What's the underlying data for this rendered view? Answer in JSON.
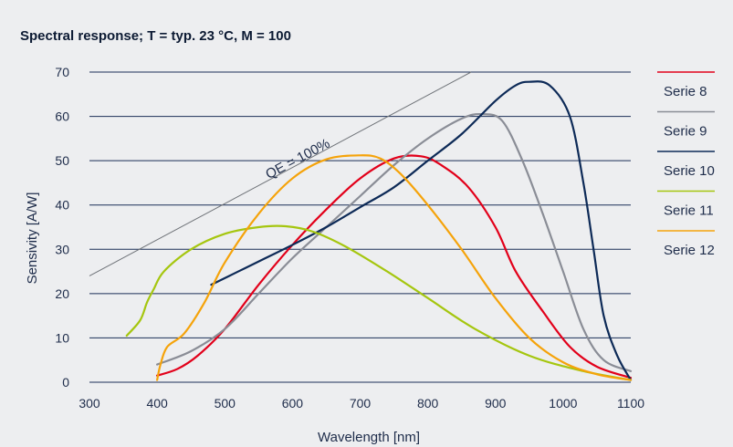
{
  "chart_data": {
    "type": "line",
    "title": "Spectral response; T = typ. 23 °C, M = 100",
    "xlabel": "Wavelength [nm]",
    "ylabel": "Sensivity  [A/W]",
    "xlim": [
      300,
      1100
    ],
    "ylim": [
      0,
      70
    ],
    "xticks": [
      "300",
      "400",
      "500",
      "600",
      "700",
      "800",
      "900",
      "1000",
      "1100"
    ],
    "yticks": [
      "0",
      "10",
      "20",
      "30",
      "40",
      "50",
      "60",
      "70"
    ],
    "grid": "horizontal",
    "legend_position": "right",
    "reference_line": {
      "label": "QE = 100%",
      "x": [
        300,
        864
      ],
      "y": [
        24,
        70
      ]
    },
    "series": [
      {
        "name": "Serie 8",
        "color": "#e2001a",
        "x": [
          400,
          430,
          460,
          500,
          550,
          600,
          650,
          700,
          750,
          790,
          820,
          860,
          900,
          930,
          970,
          1010,
          1050,
          1100
        ],
        "y": [
          1.5,
          3,
          6,
          12,
          22,
          31,
          39,
          46,
          50.5,
          51,
          49,
          44,
          35,
          25,
          16,
          8,
          3.5,
          1
        ]
      },
      {
        "name": "Serie 9",
        "color": "#8a8d96",
        "x": [
          400,
          450,
          500,
          550,
          600,
          650,
          700,
          750,
          800,
          850,
          880,
          910,
          940,
          970,
          1000,
          1030,
          1060,
          1100
        ],
        "y": [
          4,
          7,
          12,
          20,
          28,
          35,
          42,
          49,
          55,
          59.5,
          60.5,
          59,
          50,
          38,
          25,
          12,
          5,
          2.5
        ]
      },
      {
        "name": "Serie 10",
        "color": "#0d2a57",
        "x": [
          480,
          520,
          560,
          600,
          650,
          700,
          750,
          800,
          850,
          900,
          930,
          950,
          980,
          1010,
          1030,
          1045,
          1060,
          1080,
          1100
        ],
        "y": [
          22,
          25,
          28,
          31,
          35,
          39.5,
          44,
          50,
          56,
          63.5,
          67,
          67.8,
          67,
          60,
          45,
          30,
          15,
          6,
          0.5
        ]
      },
      {
        "name": "Serie 11",
        "color": "#a5c60f",
        "x": [
          355,
          375,
          385,
          395,
          410,
          450,
          500,
          550,
          590,
          630,
          680,
          740,
          800,
          870,
          950,
          1030,
          1100
        ],
        "y": [
          10.5,
          14,
          18,
          21,
          25,
          30,
          33.5,
          35,
          35.2,
          34,
          30.5,
          25,
          19,
          12,
          6,
          2.5,
          0.5
        ]
      },
      {
        "name": "Serie 12",
        "color": "#f5a30a",
        "x": [
          400,
          405,
          415,
          440,
          470,
          500,
          550,
          600,
          650,
          700,
          730,
          760,
          800,
          850,
          900,
          950,
          1000,
          1050,
          1100
        ],
        "y": [
          0.5,
          4,
          8,
          11,
          18,
          27,
          38,
          46,
          50.3,
          51.2,
          50.5,
          47,
          40,
          30,
          19,
          10,
          4.5,
          1.8,
          0.5
        ]
      }
    ]
  }
}
